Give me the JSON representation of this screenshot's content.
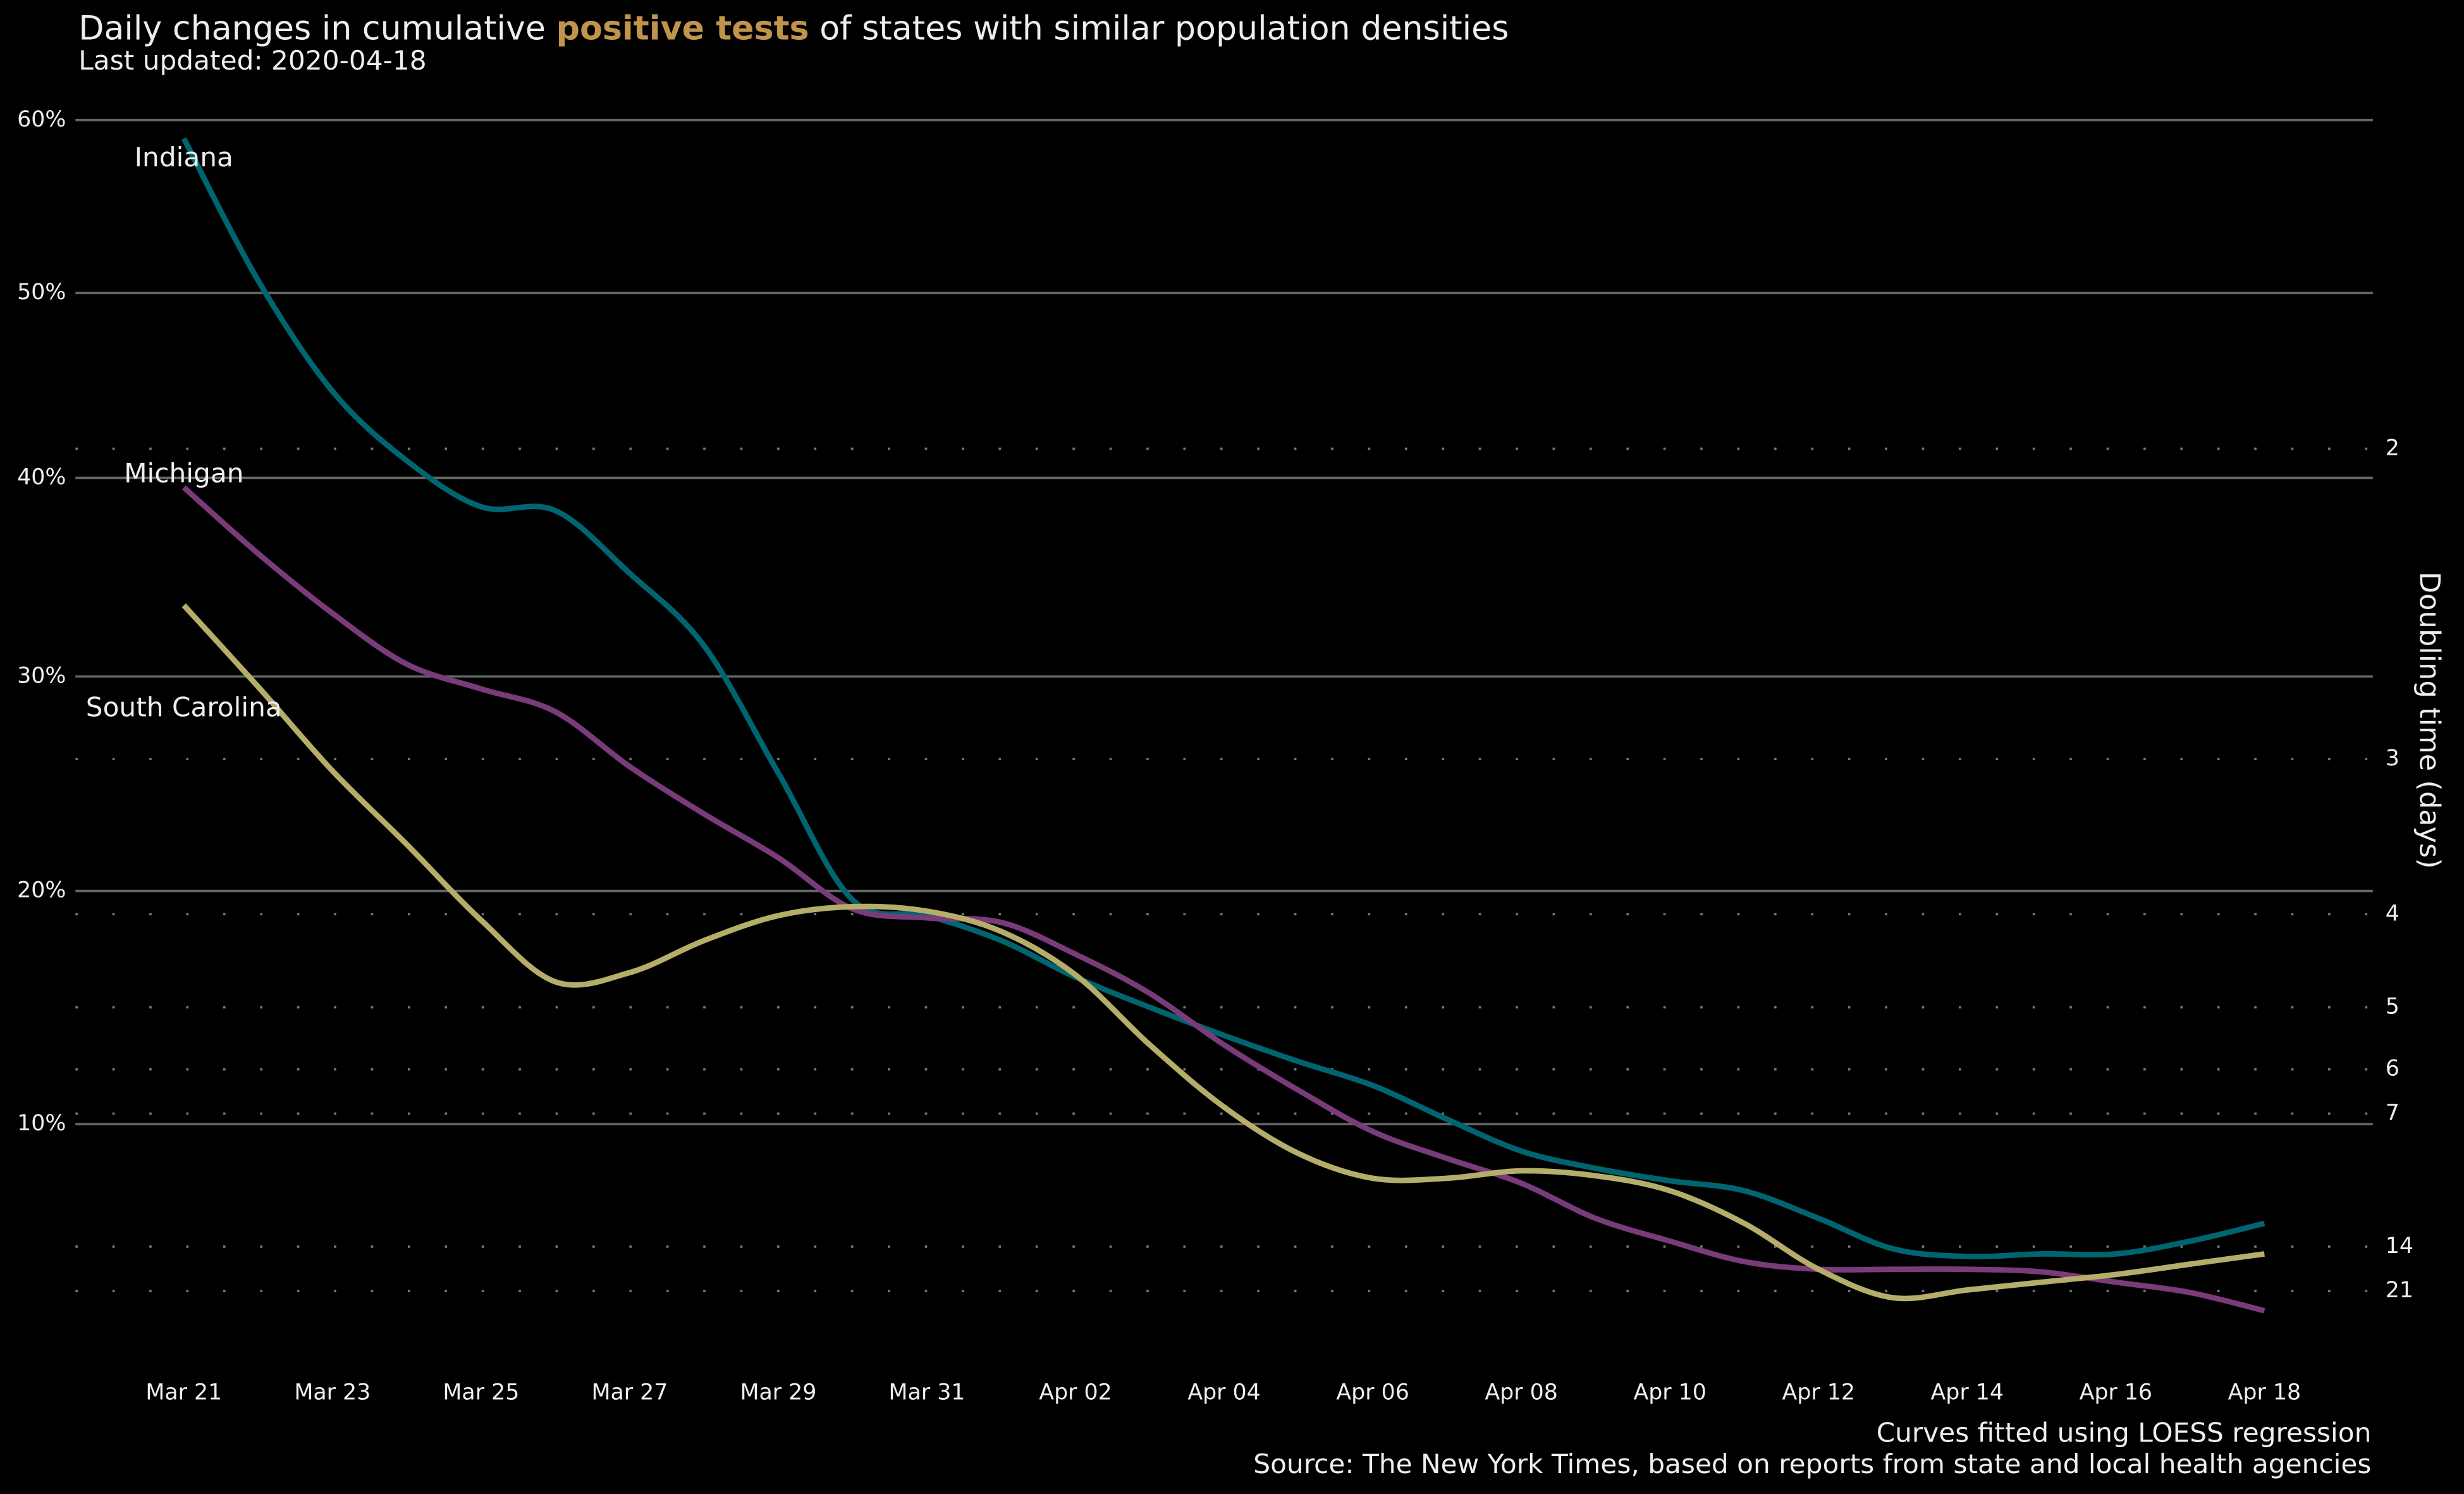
{
  "chart_data": {
    "type": "line",
    "title": [
      "Daily changes in cumulative ",
      "positive tests",
      " of states with similar population densities"
    ],
    "title_highlight_color": "#c0944a",
    "subtitle": "Last updated: 2020-04-18",
    "y2label": "Doubling time (days)",
    "notes": [
      "Curves fitted using LOESS regression",
      "Source: The New York Times, based on reports from state and local health agencies"
    ],
    "categories": [
      "Mar 21",
      null,
      "Mar 23",
      null,
      "Mar 25",
      null,
      "Mar 27",
      null,
      "Mar 29",
      null,
      "Mar 31",
      null,
      "Apr 02",
      null,
      "Apr 04",
      null,
      "Apr 06",
      null,
      "Apr 08",
      null,
      "Apr 10",
      null,
      "Apr 12",
      null,
      "Apr 14",
      null,
      "Apr 16",
      null,
      "Apr 18"
    ],
    "yscale": "log1p-percent",
    "ylim": [
      1.5,
      62
    ],
    "yticks": [
      {
        "value": 10,
        "label": "10%"
      },
      {
        "value": 20,
        "label": "20%"
      },
      {
        "value": 30,
        "label": "30%"
      },
      {
        "value": 40,
        "label": "40%"
      },
      {
        "value": 50,
        "label": "50%"
      },
      {
        "value": 60,
        "label": "60%"
      }
    ],
    "y2scale": "doubling-time",
    "y2lim": [
      46.6,
      1.44
    ],
    "y2ticks": [
      2,
      3,
      4,
      5,
      6,
      7,
      14,
      21
    ],
    "grid": true,
    "series": [
      {
        "name": "Indiana",
        "color": "#006570",
        "values": [
          58.9,
          50.7,
          44.6,
          40.9,
          38.5,
          38.3,
          35.1,
          31.5,
          25.4,
          19.6,
          18.9,
          17.8,
          16.2,
          14.9,
          13.7,
          12.6,
          11.6,
          10.2,
          8.9,
          8.2,
          7.7,
          7.3,
          6.2,
          5.0,
          4.7,
          4.8,
          4.8,
          5.3,
          6.0
        ]
      },
      {
        "name": "Michigan",
        "color": "#7a3b7a",
        "values": [
          39.5,
          36.1,
          33.1,
          30.6,
          29.4,
          28.3,
          25.7,
          23.5,
          21.5,
          19.2,
          18.8,
          18.6,
          17.2,
          15.5,
          13.3,
          11.4,
          9.7,
          8.6,
          7.6,
          6.2,
          5.3,
          4.5,
          4.2,
          4.2,
          4.2,
          4.1,
          3.7,
          3.3,
          2.6
        ]
      },
      {
        "name": "South Carolina",
        "color": "#b5ad6a",
        "values": [
          33.5,
          29.5,
          25.5,
          22.1,
          18.7,
          16.0,
          16.4,
          17.8,
          18.9,
          19.3,
          19.1,
          18.2,
          16.3,
          13.3,
          10.7,
          8.8,
          7.8,
          7.8,
          8.1,
          7.9,
          7.3,
          6.0,
          4.2,
          3.1,
          3.4,
          3.7,
          4.0,
          4.4,
          4.8
        ]
      }
    ]
  }
}
